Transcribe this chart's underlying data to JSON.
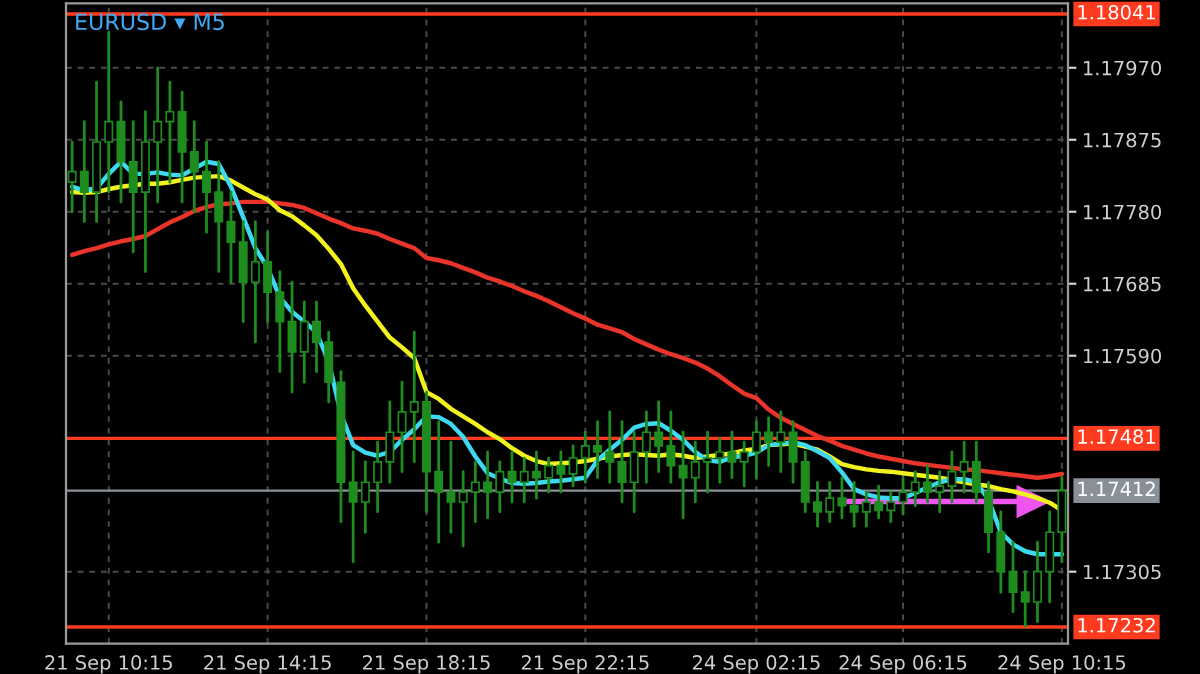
{
  "chart_data": {
    "type": "candlestick",
    "title": "EURUSD ▾ M5",
    "color": "#1e8c1e",
    "grid": true,
    "legend": false,
    "categories": [
      null,
      null,
      null,
      "21 Sep 10:15",
      null,
      null,
      null,
      null,
      null,
      null,
      null,
      null,
      null,
      null,
      null,
      null,
      "21 Sep 14:15",
      null,
      null,
      null,
      null,
      null,
      null,
      null,
      null,
      null,
      null,
      null,
      null,
      "21 Sep 18:15",
      null,
      null,
      null,
      null,
      null,
      null,
      null,
      null,
      null,
      null,
      null,
      null,
      "21 Sep 22:15",
      null,
      null,
      null,
      null,
      null,
      null,
      null,
      null,
      null,
      null,
      null,
      null,
      null,
      "24 Sep 02:15",
      null,
      null,
      null,
      null,
      null,
      null,
      null,
      null,
      null,
      null,
      null,
      "24 Sep 06:15",
      null,
      null,
      null,
      null,
      null,
      null,
      null,
      null,
      null,
      null,
      null,
      null,
      "24 Sep 10:15"
    ],
    "ohlc": [
      [
        1.17819,
        1.17872,
        1.1778,
        1.17833
      ],
      [
        1.17833,
        1.17899,
        1.17767,
        1.17806
      ],
      [
        1.17806,
        1.17951,
        1.17767,
        1.17872
      ],
      [
        1.17872,
        1.18017,
        1.17806,
        1.17899
      ],
      [
        1.17899,
        1.17925,
        1.17793,
        1.17846
      ],
      [
        1.17846,
        1.17899,
        1.17727,
        1.17806
      ],
      [
        1.17806,
        1.17912,
        1.17701,
        1.17872
      ],
      [
        1.17872,
        1.1797,
        1.17793,
        1.17899
      ],
      [
        1.17899,
        1.17951,
        1.17819,
        1.17912
      ],
      [
        1.17912,
        1.17938,
        1.17793,
        1.17859
      ],
      [
        1.17859,
        1.17899,
        1.1778,
        1.17833
      ],
      [
        1.17833,
        1.17872,
        1.17753,
        1.17806
      ],
      [
        1.17806,
        1.17846,
        1.17701,
        1.17767
      ],
      [
        1.17767,
        1.17806,
        1.17687,
        1.1774
      ],
      [
        1.1774,
        1.17767,
        1.17635,
        1.17687
      ],
      [
        1.17687,
        1.17767,
        1.17608,
        1.17714
      ],
      [
        1.17714,
        1.17753,
        1.17635,
        1.17674
      ],
      [
        1.17674,
        1.17701,
        1.17569,
        1.17635
      ],
      [
        1.17635,
        1.17687,
        1.17542,
        1.17595
      ],
      [
        1.17595,
        1.17661,
        1.17555,
        1.17635
      ],
      [
        1.17635,
        1.17661,
        1.17569,
        1.17608
      ],
      [
        1.17608,
        1.17621,
        1.17529,
        1.17555
      ],
      [
        1.17555,
        1.17569,
        1.17371,
        1.17423
      ],
      [
        1.17423,
        1.17463,
        1.17318,
        1.17397
      ],
      [
        1.17397,
        1.1745,
        1.17357,
        1.17423
      ],
      [
        1.17423,
        1.17476,
        1.17384,
        1.1745
      ],
      [
        1.1745,
        1.17529,
        1.17423,
        1.17489
      ],
      [
        1.17489,
        1.17555,
        1.17437,
        1.17516
      ],
      [
        1.17516,
        1.17621,
        1.1745,
        1.17529
      ],
      [
        1.17529,
        1.17542,
        1.17384,
        1.17437
      ],
      [
        1.17437,
        1.17503,
        1.17344,
        1.1741
      ],
      [
        1.1741,
        1.17476,
        1.17357,
        1.17397
      ],
      [
        1.17397,
        1.17437,
        1.17339,
        1.1741
      ],
      [
        1.1741,
        1.1745,
        1.17371,
        1.17423
      ],
      [
        1.17423,
        1.17463,
        1.17376,
        1.1741
      ],
      [
        1.1741,
        1.1745,
        1.17384,
        1.17437
      ],
      [
        1.17437,
        1.17463,
        1.17397,
        1.17423
      ],
      [
        1.17423,
        1.17455,
        1.17397,
        1.17437
      ],
      [
        1.17437,
        1.17463,
        1.17402,
        1.17429
      ],
      [
        1.17429,
        1.17455,
        1.1741,
        1.17445
      ],
      [
        1.17445,
        1.17463,
        1.1741,
        1.17434
      ],
      [
        1.17434,
        1.17471,
        1.17418,
        1.17455
      ],
      [
        1.17455,
        1.17489,
        1.17423,
        1.17471
      ],
      [
        1.17471,
        1.17503,
        1.17429,
        1.17463
      ],
      [
        1.17463,
        1.17516,
        1.17423,
        1.1745
      ],
      [
        1.1745,
        1.17503,
        1.17397,
        1.17423
      ],
      [
        1.17423,
        1.17489,
        1.17384,
        1.17463
      ],
      [
        1.17463,
        1.17516,
        1.17423,
        1.17489
      ],
      [
        1.17489,
        1.17529,
        1.17437,
        1.17471
      ],
      [
        1.17471,
        1.17516,
        1.17423,
        1.17445
      ],
      [
        1.17445,
        1.17489,
        1.17376,
        1.17429
      ],
      [
        1.17429,
        1.17476,
        1.17397,
        1.1745
      ],
      [
        1.1745,
        1.17489,
        1.1741,
        1.17455
      ],
      [
        1.17455,
        1.17481,
        1.17423,
        1.17463
      ],
      [
        1.17463,
        1.17489,
        1.17429,
        1.1745
      ],
      [
        1.1745,
        1.17476,
        1.17418,
        1.17463
      ],
      [
        1.17463,
        1.17503,
        1.17429,
        1.17489
      ],
      [
        1.17489,
        1.17508,
        1.17445,
        1.17476
      ],
      [
        1.17476,
        1.17516,
        1.17437,
        1.17489
      ],
      [
        1.17489,
        1.17503,
        1.17423,
        1.1745
      ],
      [
        1.1745,
        1.17463,
        1.17384,
        1.17397
      ],
      [
        1.17397,
        1.17423,
        1.17365,
        1.17384
      ],
      [
        1.17384,
        1.17423,
        1.17371,
        1.17402
      ],
      [
        1.17402,
        1.17429,
        1.17376,
        1.17392
      ],
      [
        1.17392,
        1.17423,
        1.17365,
        1.17384
      ],
      [
        1.17384,
        1.1741,
        1.17365,
        1.17397
      ],
      [
        1.17397,
        1.17418,
        1.17376,
        1.17386
      ],
      [
        1.17386,
        1.1741,
        1.17371,
        1.17397
      ],
      [
        1.17397,
        1.17429,
        1.17381,
        1.1741
      ],
      [
        1.1741,
        1.17437,
        1.17392,
        1.17423
      ],
      [
        1.17423,
        1.17445,
        1.17397,
        1.1741
      ],
      [
        1.1741,
        1.17437,
        1.17384,
        1.17418
      ],
      [
        1.17418,
        1.17463,
        1.17397,
        1.17437
      ],
      [
        1.17437,
        1.17476,
        1.1741,
        1.1745
      ],
      [
        1.1745,
        1.17476,
        1.17397,
        1.1741
      ],
      [
        1.1741,
        1.17423,
        1.17331,
        1.17357
      ],
      [
        1.17357,
        1.17384,
        1.17278,
        1.17305
      ],
      [
        1.17305,
        1.17344,
        1.17252,
        1.17278
      ],
      [
        1.17278,
        1.17305,
        1.17233,
        1.17265
      ],
      [
        1.17265,
        1.17344,
        1.17239,
        1.17305
      ],
      [
        1.17305,
        1.17384,
        1.17265,
        1.17357
      ],
      [
        1.17357,
        1.17429,
        1.17318,
        1.17412
      ]
    ],
    "series": [
      {
        "type": "line",
        "color": "#e8342a",
        "values": [
          1.17723,
          1.17728,
          1.17732,
          1.17737,
          1.17741,
          1.17744,
          1.17748,
          1.17757,
          1.17766,
          1.17773,
          1.17781,
          1.17786,
          1.1779,
          1.17791,
          1.17793,
          1.17793,
          1.17793,
          1.17791,
          1.17789,
          1.17785,
          1.17778,
          1.17771,
          1.17765,
          1.17758,
          1.17755,
          1.17751,
          1.17744,
          1.17738,
          1.17732,
          1.17719,
          1.17716,
          1.17712,
          1.17706,
          1.177,
          1.17693,
          1.17688,
          1.17682,
          1.17675,
          1.17669,
          1.17662,
          1.17654,
          1.17646,
          1.17639,
          1.17631,
          1.17626,
          1.17621,
          1.17612,
          1.17605,
          1.17598,
          1.17592,
          1.17587,
          1.17581,
          1.17573,
          1.17563,
          1.17551,
          1.1754,
          1.17534,
          1.17519,
          1.17508,
          1.175,
          1.17492,
          1.17484,
          1.17478,
          1.17471,
          1.17466,
          1.17461,
          1.17457,
          1.17454,
          1.17451,
          1.17448,
          1.17446,
          1.17444,
          1.17442,
          1.1744,
          1.17439,
          1.17437,
          1.17435,
          1.17433,
          1.17431,
          1.17429,
          1.17431,
          1.17434
        ]
      },
      {
        "type": "line",
        "color": "#f2f21e",
        "values": [
          1.17806,
          1.17805,
          1.17806,
          1.1781,
          1.17813,
          1.17815,
          1.17817,
          1.17817,
          1.17819,
          1.17822,
          1.17825,
          1.17826,
          1.17827,
          1.17821,
          1.17812,
          1.17803,
          1.17796,
          1.17782,
          1.17774,
          1.17762,
          1.17749,
          1.17731,
          1.17711,
          1.17679,
          1.17656,
          1.17635,
          1.17614,
          1.17601,
          1.17587,
          1.17542,
          1.17533,
          1.1752,
          1.1751,
          1.175,
          1.17489,
          1.1748,
          1.17468,
          1.17458,
          1.17451,
          1.17447,
          1.17448,
          1.17449,
          1.17451,
          1.17454,
          1.17457,
          1.17459,
          1.1746,
          1.17459,
          1.17458,
          1.1746,
          1.17458,
          1.17455,
          1.17457,
          1.17459,
          1.17461,
          1.17465,
          1.17467,
          1.17472,
          1.17473,
          1.17474,
          1.1747,
          1.17466,
          1.17457,
          1.17447,
          1.17443,
          1.1744,
          1.17438,
          1.17437,
          1.17435,
          1.17433,
          1.17431,
          1.17429,
          1.17426,
          1.17423,
          1.1742,
          1.17418,
          1.17414,
          1.17411,
          1.17407,
          1.17402,
          1.17396,
          1.17386
        ]
      },
      {
        "type": "line",
        "color": "#3ed8f0",
        "values": [
          1.17813,
          1.17808,
          1.17811,
          1.1783,
          1.17846,
          1.1783,
          1.1783,
          1.17832,
          1.17829,
          1.17828,
          1.17837,
          1.17846,
          1.17843,
          1.17813,
          1.17773,
          1.17732,
          1.17706,
          1.17667,
          1.17648,
          1.17635,
          1.17621,
          1.17582,
          1.17513,
          1.17472,
          1.17462,
          1.17458,
          1.17463,
          1.17479,
          1.17493,
          1.1751,
          1.17509,
          1.175,
          1.17483,
          1.17457,
          1.17435,
          1.17428,
          1.17422,
          1.17421,
          1.17422,
          1.17424,
          1.17425,
          1.17427,
          1.17429,
          1.17452,
          1.17466,
          1.17479,
          1.17495,
          1.175,
          1.17501,
          1.17491,
          1.17479,
          1.17463,
          1.17452,
          1.1745,
          1.17456,
          1.17458,
          1.17462,
          1.17472,
          1.17474,
          1.17476,
          1.17472,
          1.17464,
          1.17455,
          1.17436,
          1.17414,
          1.17407,
          1.17403,
          1.17402,
          1.17402,
          1.17409,
          1.17416,
          1.17423,
          1.17427,
          1.17427,
          1.17423,
          1.174,
          1.17357,
          1.17341,
          1.17332,
          1.17328,
          1.17328,
          1.17328
        ]
      }
    ],
    "ref_lines": [
      {
        "axis": "y",
        "value": 1.18041,
        "label": "1.18041",
        "color": "#ff3b1f"
      },
      {
        "axis": "y",
        "value": 1.17481,
        "label": "1.17481",
        "color": "#ff3b1f"
      },
      {
        "axis": "y",
        "value": 1.17232,
        "label": "1.17232",
        "color": "#ff3b1f"
      },
      {
        "axis": "y",
        "value": 1.17412,
        "label": "1.17412",
        "color": "#8a9098"
      }
    ],
    "ylim": [
      1.1721,
      1.18055
    ],
    "yticks": [
      {
        "value": 1.17305,
        "label": "1.17305"
      },
      {
        "value": 1.1759,
        "label": "1.17590"
      },
      {
        "value": 1.17685,
        "label": "1.17685"
      },
      {
        "value": 1.1778,
        "label": "1.17780"
      },
      {
        "value": 1.17875,
        "label": "1.17875"
      },
      {
        "value": 1.1797,
        "label": "1.17970"
      }
    ]
  }
}
